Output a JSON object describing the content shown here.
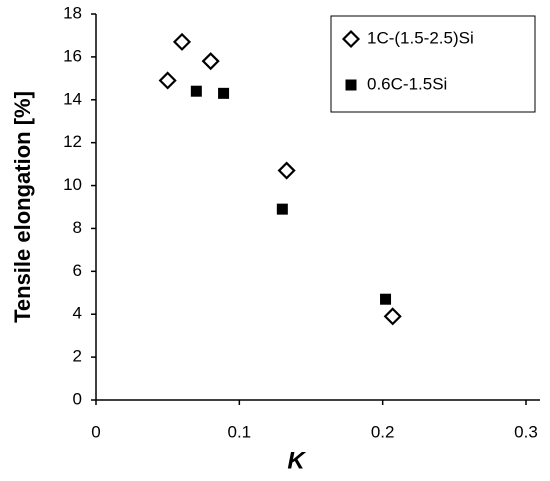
{
  "chart_data": {
    "type": "scatter",
    "xlabel": "K",
    "ylabel": "Tensile elongation [%]",
    "xlim": [
      0,
      0.3
    ],
    "xticks": [
      0,
      0.1,
      0.2,
      0.3
    ],
    "ylim": [
      0,
      18
    ],
    "yticks": [
      0,
      2,
      4,
      6,
      8,
      10,
      12,
      14,
      16,
      18
    ],
    "grid": false,
    "legend": "upper right",
    "series": [
      {
        "name": "1C-(1.5-2.5)Si",
        "color": "#000000",
        "marker": "diamond",
        "x": [
          0.05,
          0.06,
          0.08,
          0.133,
          0.207
        ],
        "values": [
          14.9,
          16.7,
          15.8,
          10.7,
          3.9
        ]
      },
      {
        "name": "0.6C-1.5Si",
        "color": "#000000",
        "marker": "square",
        "x": [
          0.07,
          0.089,
          0.13,
          0.202
        ],
        "values": [
          14.4,
          14.3,
          8.9,
          4.7
        ]
      }
    ]
  }
}
